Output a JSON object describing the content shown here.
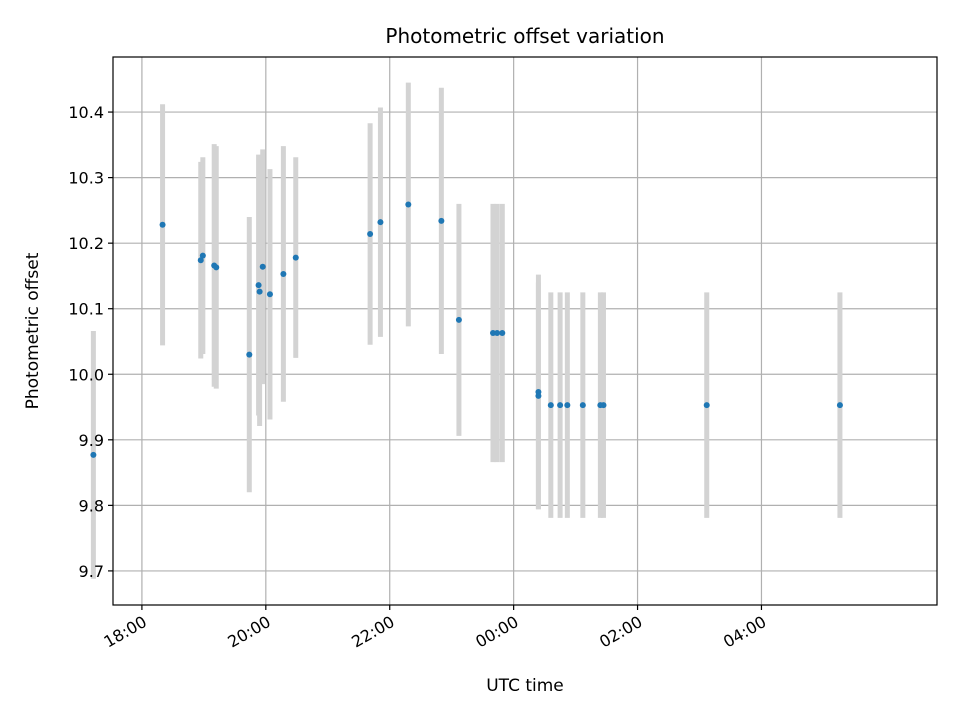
{
  "chart_data": {
    "type": "scatter",
    "title": "Photometric offset variation",
    "xlabel": "UTC time",
    "ylabel": "Photometric offset",
    "x_axis": "time (UTC), spanning two dates",
    "grid": true,
    "xlim": [
      "17:32",
      "06:50"
    ],
    "ylim": [
      9.648,
      10.484
    ],
    "xticks": [
      "18:00",
      "20:00",
      "22:00",
      "00:00",
      "02:00",
      "04:00"
    ],
    "yticks": [
      9.7,
      9.8,
      9.9,
      10.0,
      10.1,
      10.2,
      10.3,
      10.4
    ],
    "colors": {
      "points": "#1f77b4",
      "errorbars": "#d3d3d3",
      "grid": "#b0b0b0"
    },
    "points": [
      {
        "x": "17:13",
        "y": 9.877,
        "yerr_low": 9.688,
        "yerr_high": 10.066
      },
      {
        "x": "18:20",
        "y": 10.228,
        "yerr_low": 10.044,
        "yerr_high": 10.412
      },
      {
        "x": "18:57",
        "y": 10.174,
        "yerr_low": 10.024,
        "yerr_high": 10.324
      },
      {
        "x": "18:59",
        "y": 10.181,
        "yerr_low": 10.031,
        "yerr_high": 10.331
      },
      {
        "x": "19:10",
        "y": 10.166,
        "yerr_low": 9.981,
        "yerr_high": 10.351
      },
      {
        "x": "19:12",
        "y": 10.163,
        "yerr_low": 9.978,
        "yerr_high": 10.348
      },
      {
        "x": "19:44",
        "y": 10.03,
        "yerr_low": 9.82,
        "yerr_high": 10.24
      },
      {
        "x": "19:53",
        "y": 10.136,
        "yerr_low": 9.937,
        "yerr_high": 10.335
      },
      {
        "x": "19:54",
        "y": 10.126,
        "yerr_low": 9.921,
        "yerr_high": 10.331
      },
      {
        "x": "19:57",
        "y": 10.164,
        "yerr_low": 9.985,
        "yerr_high": 10.343
      },
      {
        "x": "20:04",
        "y": 10.122,
        "yerr_low": 9.931,
        "yerr_high": 10.313
      },
      {
        "x": "20:17",
        "y": 10.153,
        "yerr_low": 9.958,
        "yerr_high": 10.348
      },
      {
        "x": "20:29",
        "y": 10.178,
        "yerr_low": 10.025,
        "yerr_high": 10.331
      },
      {
        "x": "21:41",
        "y": 10.214,
        "yerr_low": 10.045,
        "yerr_high": 10.383
      },
      {
        "x": "21:51",
        "y": 10.232,
        "yerr_low": 10.057,
        "yerr_high": 10.407
      },
      {
        "x": "22:18",
        "y": 10.259,
        "yerr_low": 10.073,
        "yerr_high": 10.445
      },
      {
        "x": "22:50",
        "y": 10.234,
        "yerr_low": 10.031,
        "yerr_high": 10.437
      },
      {
        "x": "23:07",
        "y": 10.083,
        "yerr_low": 9.906,
        "yerr_high": 10.26
      },
      {
        "x": "23:40",
        "y": 10.063,
        "yerr_low": 9.866,
        "yerr_high": 10.26
      },
      {
        "x": "23:44",
        "y": 10.063,
        "yerr_low": 9.866,
        "yerr_high": 10.26
      },
      {
        "x": "23:49",
        "y": 10.063,
        "yerr_low": 9.866,
        "yerr_high": 10.26
      },
      {
        "x": "00:24",
        "y": 9.973,
        "yerr_low": 9.794,
        "yerr_high": 10.152
      },
      {
        "x": "00:24",
        "y": 9.967,
        "yerr_low": 9.794,
        "yerr_high": 10.14
      },
      {
        "x": "00:36",
        "y": 9.953,
        "yerr_low": 9.781,
        "yerr_high": 10.125
      },
      {
        "x": "00:45",
        "y": 9.953,
        "yerr_low": 9.781,
        "yerr_high": 10.125
      },
      {
        "x": "00:52",
        "y": 9.953,
        "yerr_low": 9.781,
        "yerr_high": 10.125
      },
      {
        "x": "01:07",
        "y": 9.953,
        "yerr_low": 9.781,
        "yerr_high": 10.125
      },
      {
        "x": "01:24",
        "y": 9.953,
        "yerr_low": 9.781,
        "yerr_high": 10.125
      },
      {
        "x": "01:27",
        "y": 9.953,
        "yerr_low": 9.781,
        "yerr_high": 10.125
      },
      {
        "x": "03:07",
        "y": 9.953,
        "yerr_low": 9.781,
        "yerr_high": 10.125
      },
      {
        "x": "05:16",
        "y": 9.953,
        "yerr_low": 9.781,
        "yerr_high": 10.125
      }
    ]
  }
}
